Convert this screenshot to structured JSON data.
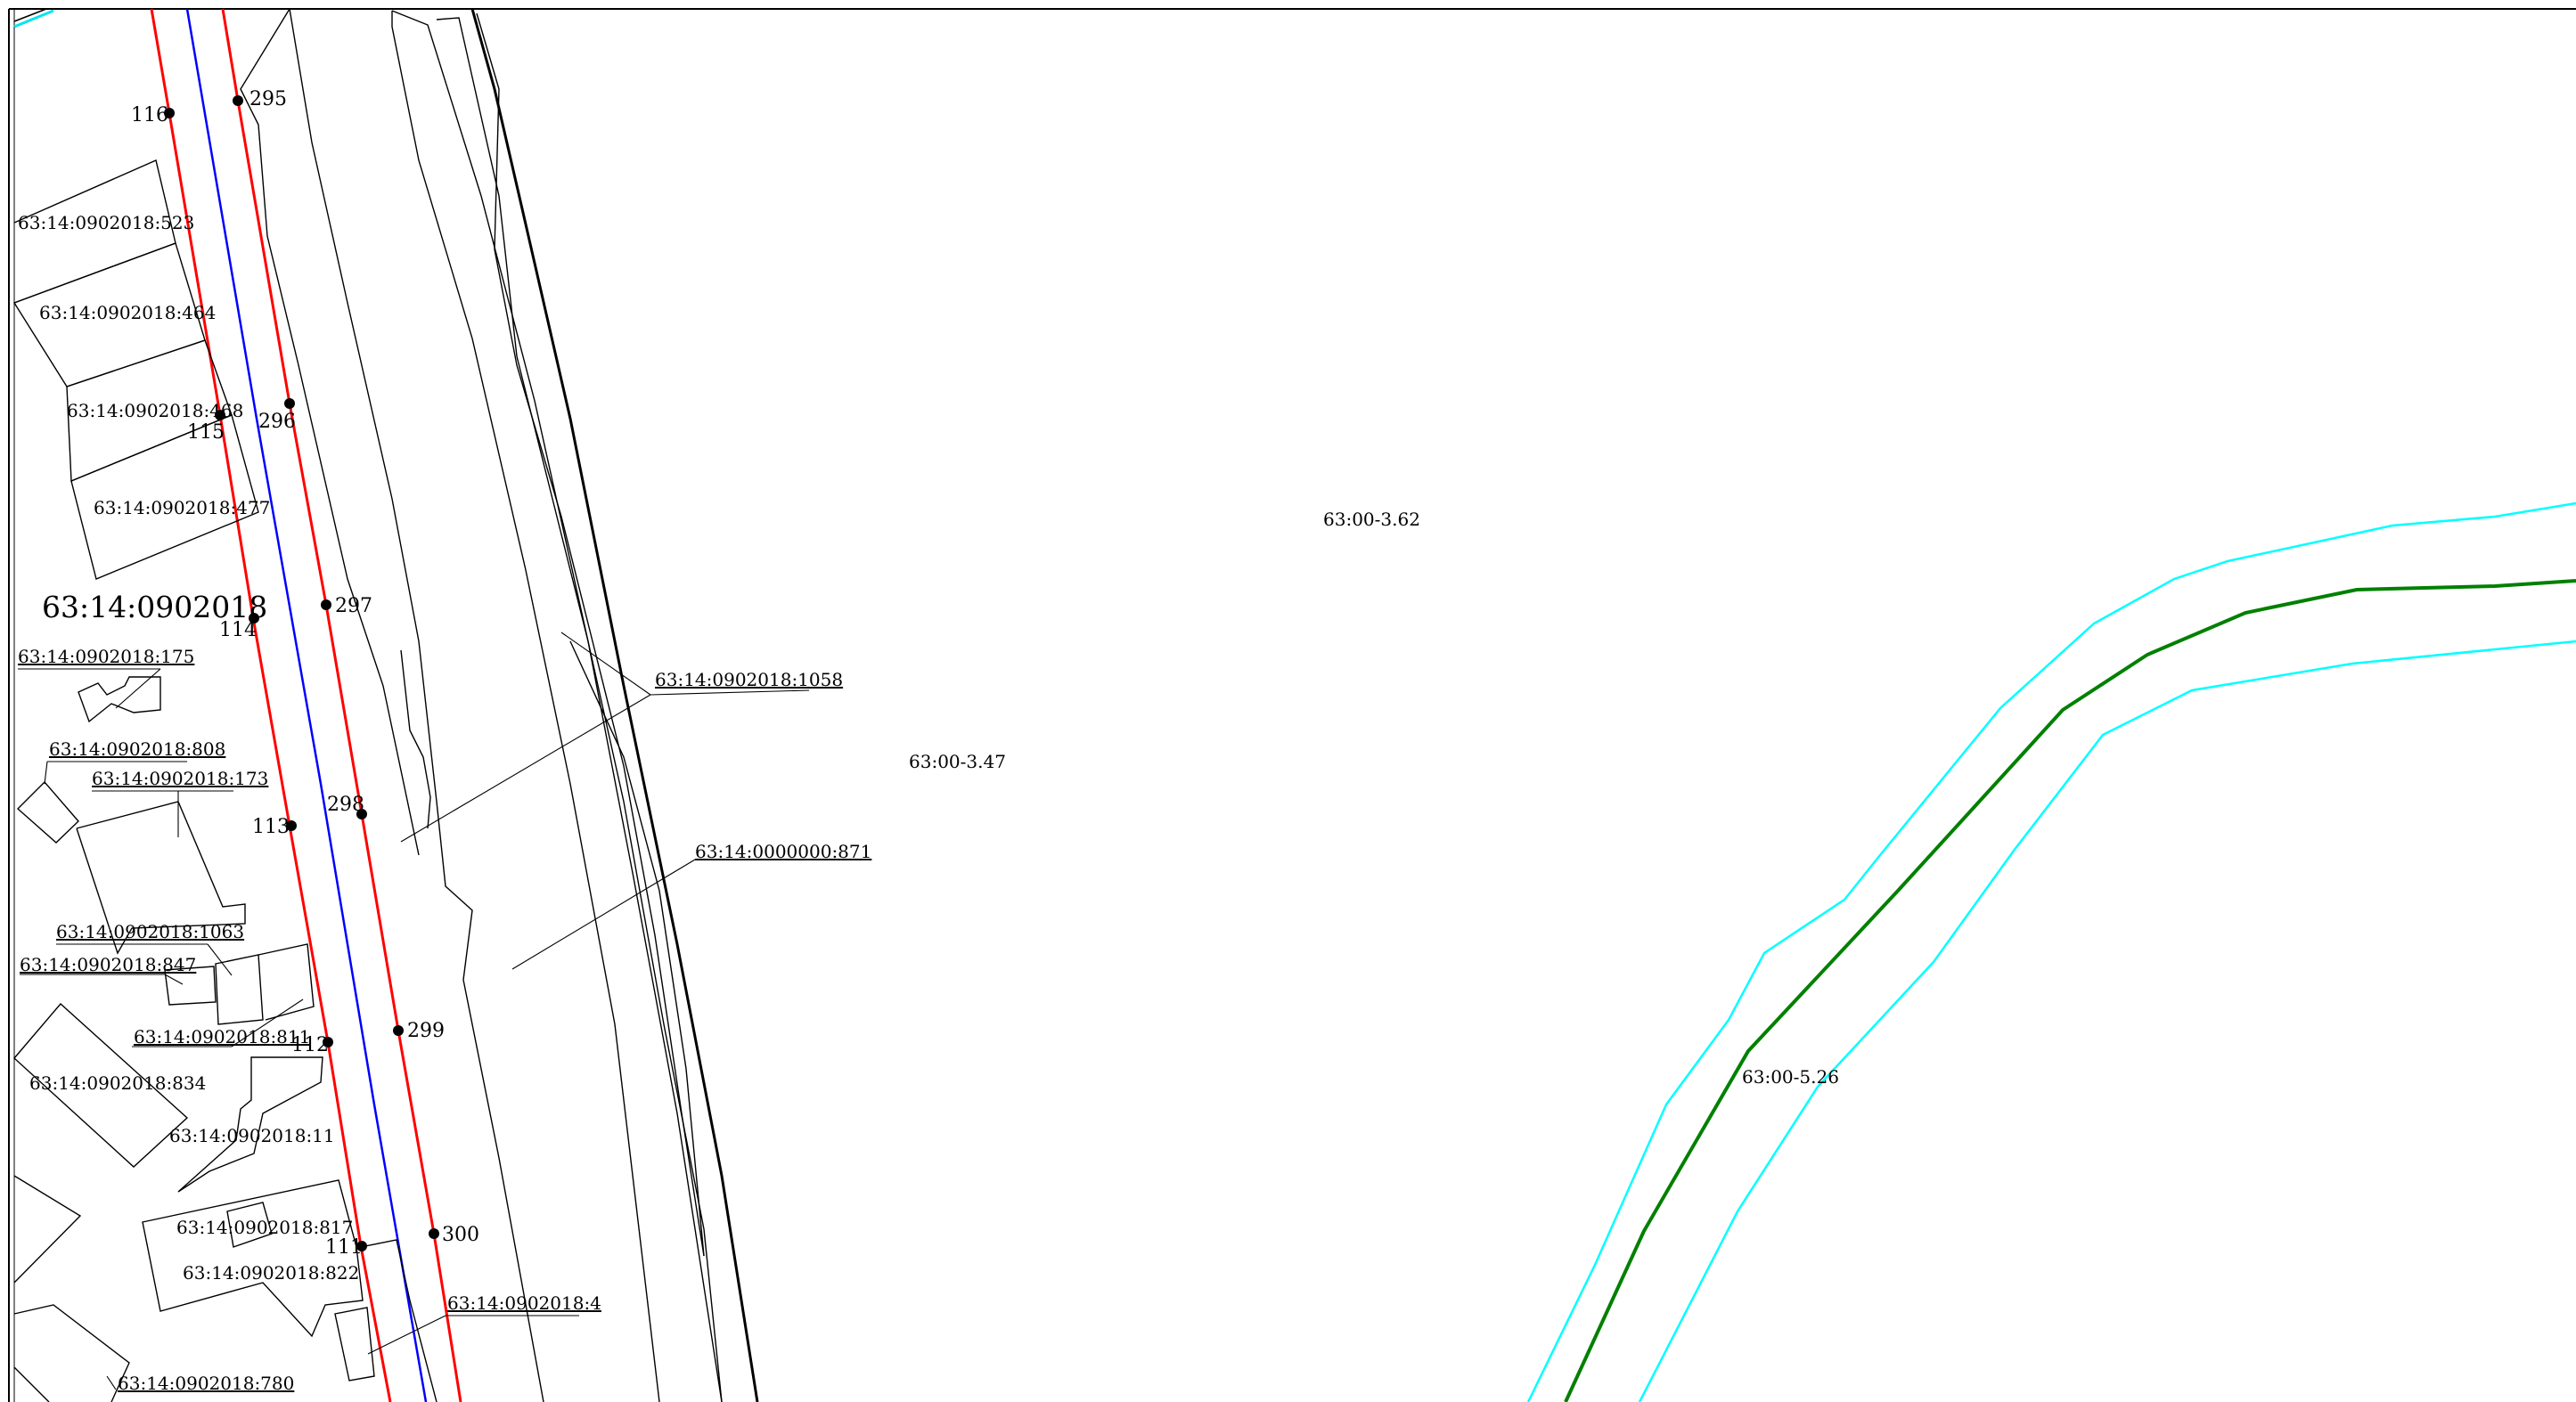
{
  "cadastral_block": {
    "label": "63:14:0902018"
  },
  "parcel_labels": [
    "63:14:0902018:523",
    "63:14:0902018:464",
    "63:14:0902018:468",
    "63:14:0902018:477",
    "63:14:0902018:175",
    "63:14:0902018:808",
    "63:14:0902018:173",
    "63:14:0902018:1063",
    "63:14:0902018:847",
    "63:14:0902018:811",
    "63:14:0902018:834",
    "63:14:0902018:11",
    "63:14:0902018:817",
    "63:14:0902018:822",
    "63:14:0902018:4",
    "63:14:0902018:780",
    "63:14:0902018:1058",
    "63:14:0000000:871"
  ],
  "zone_labels": [
    "63:00-3.62",
    "63:00-3.47",
    "63:00-5.26"
  ],
  "boundary_points": {
    "left_red_line": [
      "116",
      "115",
      "114",
      "113",
      "112",
      "111"
    ],
    "right_red_line": [
      "295",
      "296",
      "297",
      "298",
      "299",
      "300"
    ]
  },
  "colors": {
    "red_line": "#ff0000",
    "blue_line": "#0000ff",
    "zone_line": "#00ffff",
    "water_line": "#008000",
    "parcel_line": "#000000"
  }
}
